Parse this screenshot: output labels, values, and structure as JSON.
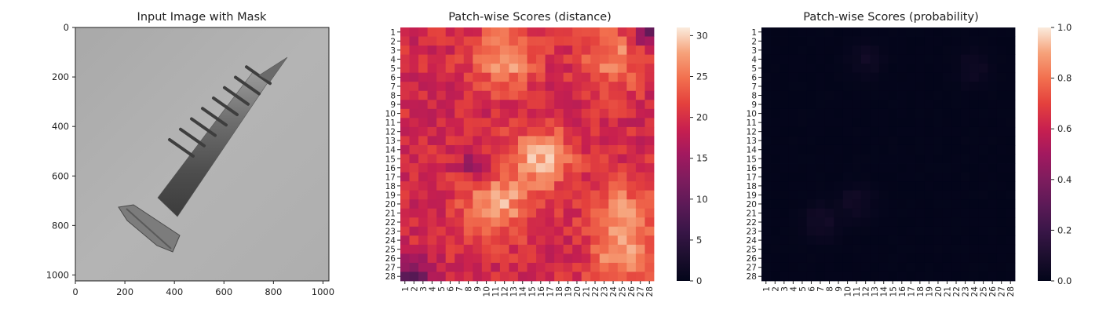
{
  "chart_data": [
    {
      "type": "image",
      "title": "Input Image with Mask",
      "x_ticks": [
        "0",
        "200",
        "400",
        "600",
        "800",
        "1000"
      ],
      "y_ticks": [
        "0",
        "200",
        "400",
        "600",
        "800",
        "1000"
      ],
      "xlim": [
        0,
        1024
      ],
      "ylim": [
        1024,
        0
      ],
      "subject": "screw"
    },
    {
      "type": "heatmap",
      "title": "Patch-wise Scores (distance)",
      "rows": 28,
      "cols": 28,
      "x_ticks": [
        "1",
        "2",
        "3",
        "4",
        "5",
        "6",
        "7",
        "8",
        "9",
        "10",
        "11",
        "12",
        "13",
        "14",
        "15",
        "16",
        "17",
        "18",
        "19",
        "20",
        "21",
        "22",
        "23",
        "24",
        "25",
        "26",
        "27",
        "28"
      ],
      "y_ticks": [
        "1",
        "2",
        "3",
        "4",
        "5",
        "6",
        "7",
        "8",
        "9",
        "10",
        "11",
        "12",
        "13",
        "14",
        "15",
        "16",
        "17",
        "18",
        "19",
        "20",
        "21",
        "22",
        "23",
        "24",
        "25",
        "26",
        "27",
        "28"
      ],
      "colorbar": {
        "min": 0,
        "max": 31,
        "ticks": [
          "0",
          "5",
          "10",
          "15",
          "20",
          "25",
          "30"
        ],
        "colormap": "rocket"
      },
      "hot_regions": [
        {
          "row": 4,
          "col": 12,
          "value": 28
        },
        {
          "row": 4,
          "col": 24,
          "value": 27
        },
        {
          "row": 15,
          "col": 16,
          "value": 29
        },
        {
          "row": 20,
          "col": 11,
          "value": 29
        },
        {
          "row": 21,
          "col": 25,
          "value": 27
        },
        {
          "row": 26,
          "col": 25,
          "value": 27
        }
      ],
      "cold_regions": [
        {
          "row": 1,
          "col": 28,
          "value": 10
        },
        {
          "row": 28,
          "col": 2,
          "value": 9
        },
        {
          "row": 16,
          "col": 9,
          "value": 14
        }
      ]
    },
    {
      "type": "heatmap",
      "title": "Patch-wise Scores (probability)",
      "rows": 28,
      "cols": 28,
      "x_ticks": [
        "1",
        "2",
        "3",
        "4",
        "5",
        "6",
        "7",
        "8",
        "9",
        "10",
        "11",
        "12",
        "13",
        "14",
        "15",
        "16",
        "17",
        "18",
        "19",
        "20",
        "21",
        "22",
        "23",
        "24",
        "25",
        "26",
        "27",
        "28"
      ],
      "y_ticks": [
        "1",
        "2",
        "3",
        "4",
        "5",
        "6",
        "7",
        "8",
        "9",
        "10",
        "11",
        "12",
        "13",
        "14",
        "15",
        "16",
        "17",
        "18",
        "19",
        "20",
        "21",
        "22",
        "23",
        "24",
        "25",
        "26",
        "27",
        "28"
      ],
      "colorbar": {
        "min": 0.0,
        "max": 1.0,
        "ticks": [
          "0.0",
          "0.2",
          "0.4",
          "0.6",
          "0.8",
          "1.0"
        ],
        "colormap": "rocket"
      },
      "hot_regions": [
        {
          "row": 4,
          "col": 12,
          "value": 0.05
        },
        {
          "row": 5,
          "col": 24,
          "value": 0.05
        },
        {
          "row": 20,
          "col": 11,
          "value": 0.06
        },
        {
          "row": 22,
          "col": 7,
          "value": 0.07
        }
      ]
    }
  ]
}
